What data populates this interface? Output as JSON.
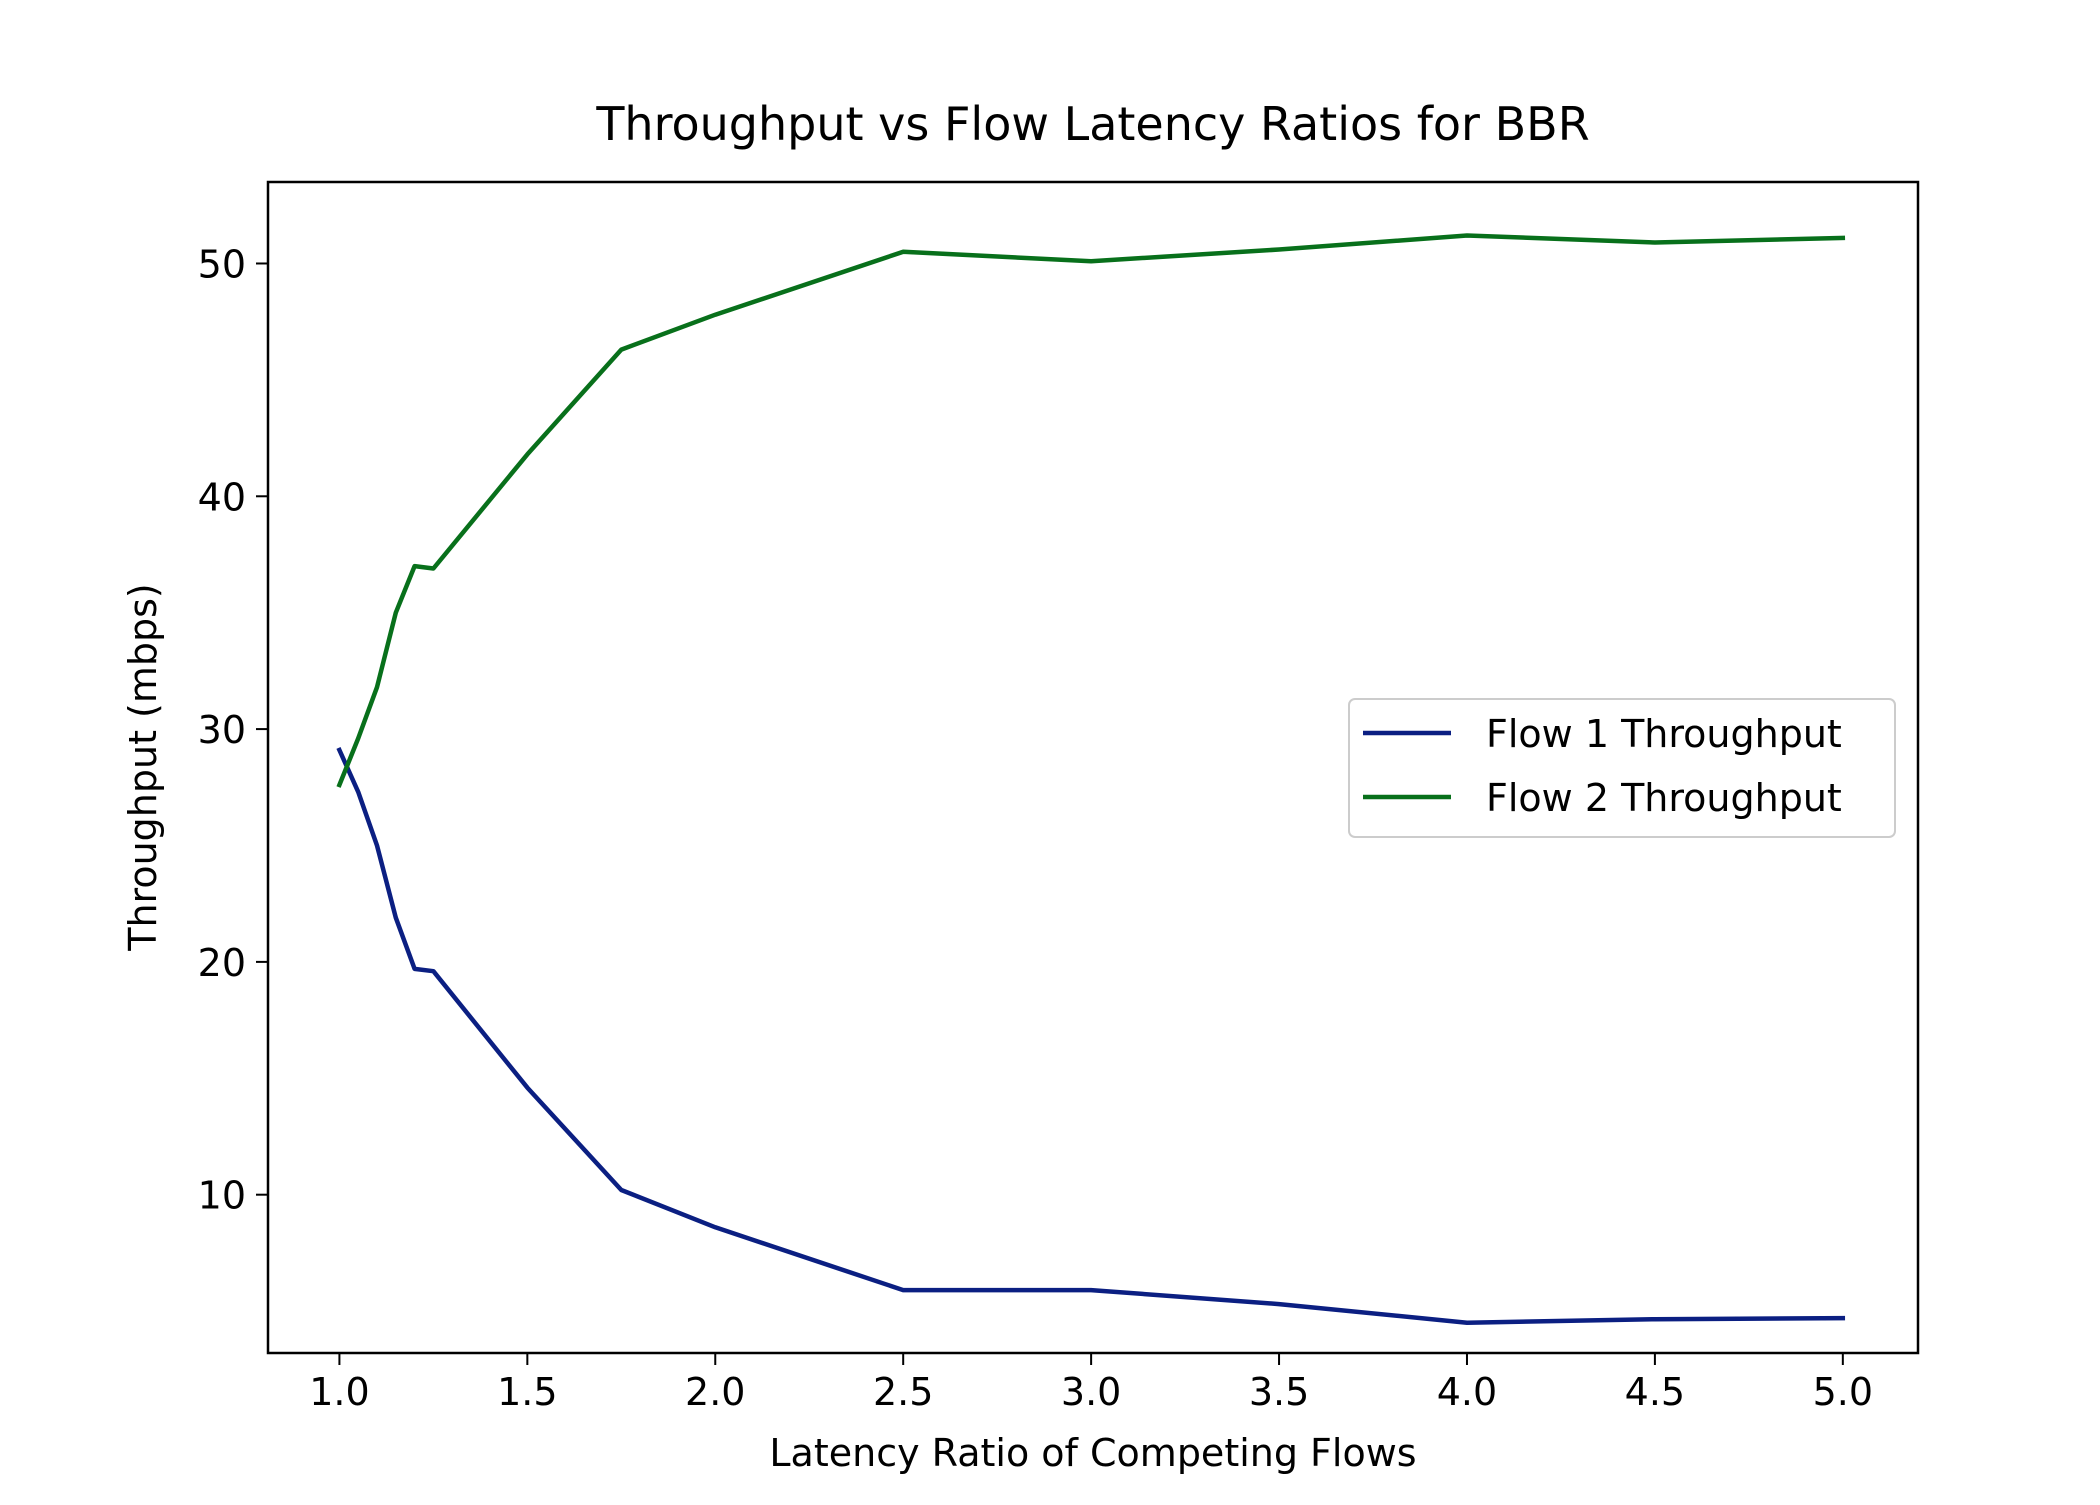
{
  "chart_data": {
    "type": "line",
    "title": "Throughput vs Flow Latency Ratios for BBR",
    "xlabel": "Latency Ratio of Competing Flows",
    "ylabel": "Throughput (mbps)",
    "xlim": [
      0.81,
      5.2
    ],
    "ylim": [
      3.2,
      53.5
    ],
    "x_ticks": [
      1.0,
      1.5,
      2.0,
      2.5,
      3.0,
      3.5,
      4.0,
      4.5,
      5.0
    ],
    "x_tick_labels": [
      "1.0",
      "1.5",
      "2.0",
      "2.5",
      "3.0",
      "3.5",
      "4.0",
      "4.5",
      "5.0"
    ],
    "y_ticks": [
      10,
      20,
      30,
      40,
      50
    ],
    "y_tick_labels": [
      "10",
      "20",
      "30",
      "40",
      "50"
    ],
    "grid": false,
    "legend_position": "right",
    "series": [
      {
        "name": "Flow 1 Throughput",
        "color": "#0b1f82",
        "x": [
          1.0,
          1.05,
          1.1,
          1.15,
          1.2,
          1.25,
          1.5,
          1.75,
          2.0,
          2.5,
          3.0,
          3.5,
          4.0,
          4.5,
          5.0
        ],
        "y": [
          29.1,
          27.3,
          25.0,
          21.9,
          19.7,
          19.6,
          14.6,
          10.2,
          8.6,
          5.9,
          5.9,
          5.3,
          4.5,
          4.65,
          4.7
        ]
      },
      {
        "name": "Flow 2 Throughput",
        "color": "#08701b",
        "x": [
          1.0,
          1.05,
          1.1,
          1.15,
          1.2,
          1.25,
          1.5,
          1.75,
          2.0,
          2.5,
          3.0,
          3.5,
          4.0,
          4.5,
          5.0
        ],
        "y": [
          27.6,
          29.6,
          31.8,
          35.0,
          37.0,
          36.9,
          41.8,
          46.3,
          47.8,
          50.5,
          50.1,
          50.6,
          51.2,
          50.9,
          51.1
        ]
      }
    ]
  }
}
